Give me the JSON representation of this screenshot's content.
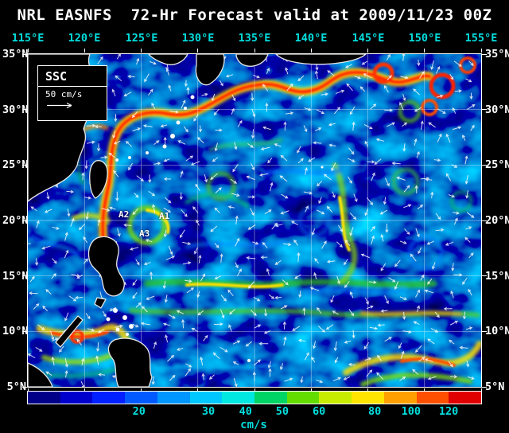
{
  "title": "NRL EASNFS  72-Hr Forecast valid at 2009/11/23 00Z",
  "axes": {
    "lon_labels": [
      "115°E",
      "120°E",
      "125°E",
      "130°E",
      "135°E",
      "140°E",
      "145°E",
      "150°E",
      "155°E"
    ],
    "lat_labels": [
      "35°N",
      "30°N",
      "25°N",
      "20°N",
      "15°N",
      "10°N",
      "5°N"
    ]
  },
  "legend": {
    "label": "SSC",
    "scale_label": "50 cm/s"
  },
  "annotations": [
    {
      "label": "A1"
    },
    {
      "label": "A2"
    },
    {
      "label": "A3"
    }
  ],
  "colorbar": {
    "unit": "cm/s",
    "ticks": [
      {
        "label": "20",
        "x_pct": 24.7
      },
      {
        "label": "30",
        "x_pct": 40.0
      },
      {
        "label": "40",
        "x_pct": 48.2
      },
      {
        "label": "50",
        "x_pct": 56.3
      },
      {
        "label": "60",
        "x_pct": 64.4
      },
      {
        "label": "80",
        "x_pct": 76.7
      },
      {
        "label": "100",
        "x_pct": 84.7
      },
      {
        "label": "120",
        "x_pct": 93.0
      }
    ],
    "colors": [
      "#000089",
      "#0000cd",
      "#0020ff",
      "#005aff",
      "#0096ff",
      "#00c8ff",
      "#00e8e0",
      "#00d464",
      "#64dc00",
      "#c8ec00",
      "#ffe400",
      "#ffa000",
      "#ff5000",
      "#e00000"
    ]
  },
  "map_colors": {
    "ocean_base": "#000050",
    "arrow": "#ffffff",
    "grid": "#ffffff",
    "axis_label": "#00dede",
    "title": "#ffffff"
  }
}
